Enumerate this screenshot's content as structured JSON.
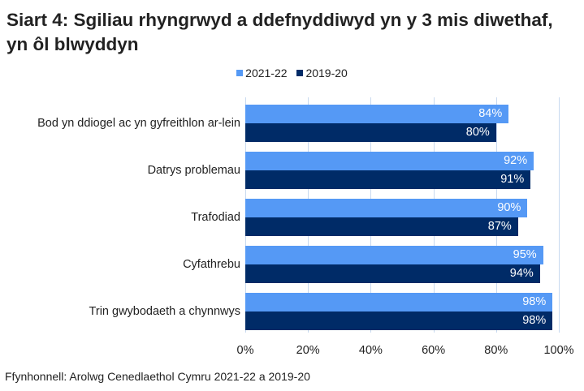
{
  "title": "Siart 4: Sgiliau rhyngrwyd a ddefnyddiwyd yn y 3 mis diwethaf, yn ôl blwyddyn",
  "source": "Ffynhonnell: Arolwg Cenedlaethol Cymru 2021-22 a 2019-20",
  "legend": [
    {
      "label": "2021-22",
      "color": "#5599f5"
    },
    {
      "label": "2019-20",
      "color": "#002b67"
    }
  ],
  "chart_data": {
    "type": "bar",
    "orientation": "horizontal",
    "title": "Siart 4: Sgiliau rhyngrwyd a ddefnyddiwyd yn y 3 mis diwethaf, yn ôl blwyddyn",
    "categories": [
      "Bod yn ddiogel ac yn gyfreithlon ar-lein",
      "Datrys problemau",
      "Trafodiad",
      "Cyfathrebu",
      "Trin gwybodaeth a chynnwys"
    ],
    "series": [
      {
        "name": "2021-22",
        "color": "#5599f5",
        "values": [
          84,
          92,
          90,
          95,
          98
        ]
      },
      {
        "name": "2019-20",
        "color": "#002b67",
        "values": [
          80,
          91,
          87,
          94,
          98
        ]
      }
    ],
    "data_labels": [
      [
        "84%",
        "92%",
        "90%",
        "95%",
        "98%"
      ],
      [
        "80%",
        "91%",
        "87%",
        "94%",
        "98%"
      ]
    ],
    "xlabel": "",
    "ylabel": "",
    "xlim": [
      0,
      100
    ],
    "x_ticks": [
      "0%",
      "20%",
      "40%",
      "60%",
      "80%",
      "100%"
    ],
    "grid": true,
    "legend_position": "top"
  }
}
